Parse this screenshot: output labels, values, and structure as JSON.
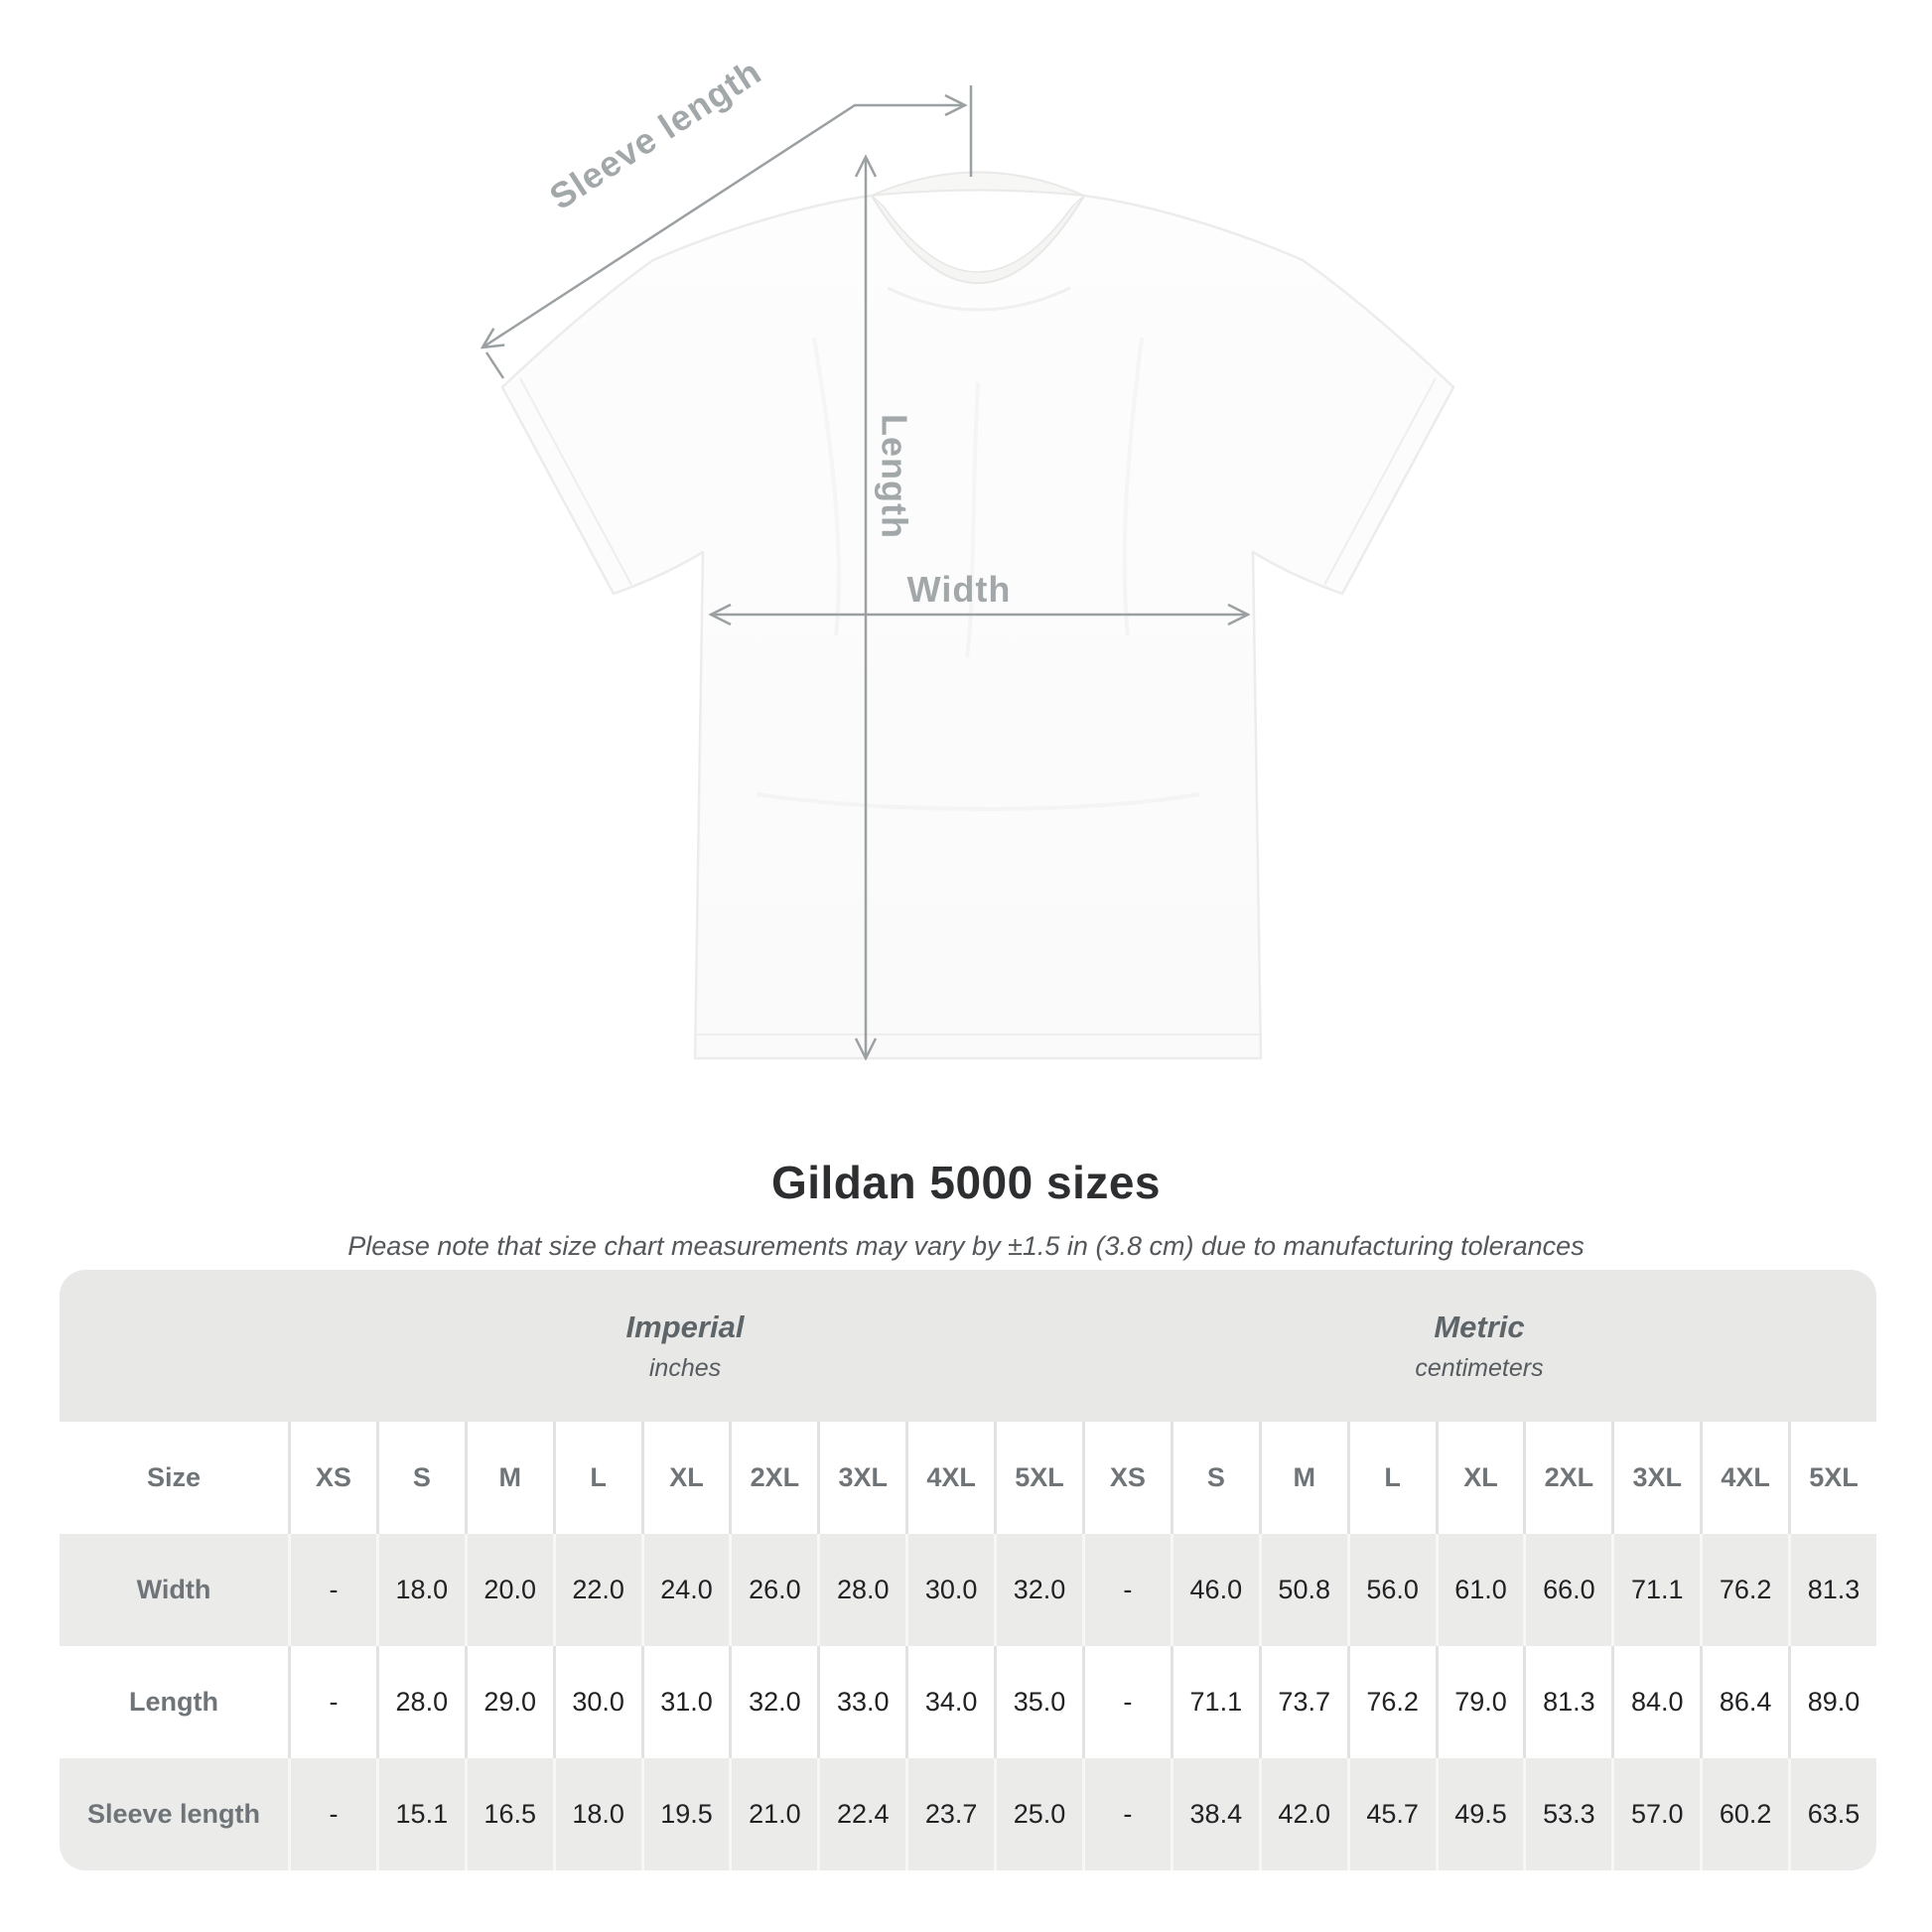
{
  "diagram": {
    "sleeve_label": "Sleeve length",
    "length_label": "Length",
    "width_label": "Width"
  },
  "header": {
    "title": "Gildan 5000 sizes",
    "note": "Please note that size chart measurements may vary by ±1.5 in (3.8 cm) due to manufacturing tolerances"
  },
  "chart_data": {
    "type": "table",
    "title": "Gildan 5000 sizes",
    "note": "Please note that size chart measurements may vary by ±1.5 in (3.8 cm) due to manufacturing tolerances",
    "unit_groups": [
      {
        "label": "Imperial",
        "units": "inches"
      },
      {
        "label": "Metric",
        "units": "centimeters"
      }
    ],
    "size_column_header": "Size",
    "sizes": [
      "XS",
      "S",
      "M",
      "L",
      "XL",
      "2XL",
      "3XL",
      "4XL",
      "5XL"
    ],
    "rows": [
      {
        "label": "Width",
        "imperial": [
          "-",
          "18.0",
          "20.0",
          "22.0",
          "24.0",
          "26.0",
          "28.0",
          "30.0",
          "32.0"
        ],
        "metric": [
          "-",
          "46.0",
          "50.8",
          "56.0",
          "61.0",
          "66.0",
          "71.1",
          "76.2",
          "81.3"
        ]
      },
      {
        "label": "Length",
        "imperial": [
          "-",
          "28.0",
          "29.0",
          "30.0",
          "31.0",
          "32.0",
          "33.0",
          "34.0",
          "35.0"
        ],
        "metric": [
          "-",
          "71.1",
          "73.7",
          "76.2",
          "79.0",
          "81.3",
          "84.0",
          "86.4",
          "89.0"
        ]
      },
      {
        "label": "Sleeve length",
        "imperial": [
          "-",
          "15.1",
          "16.5",
          "18.0",
          "19.5",
          "21.0",
          "22.4",
          "23.7",
          "25.0"
        ],
        "metric": [
          "-",
          "38.4",
          "42.0",
          "45.7",
          "49.5",
          "53.3",
          "57.0",
          "60.2",
          "63.5"
        ]
      }
    ]
  },
  "colors": {
    "band_gray": "#e8e8e7",
    "row_stripe": "#ebebea",
    "annotation_gray": "#9ba0a3",
    "header_text": "#6e7478",
    "value_text": "#202224"
  }
}
